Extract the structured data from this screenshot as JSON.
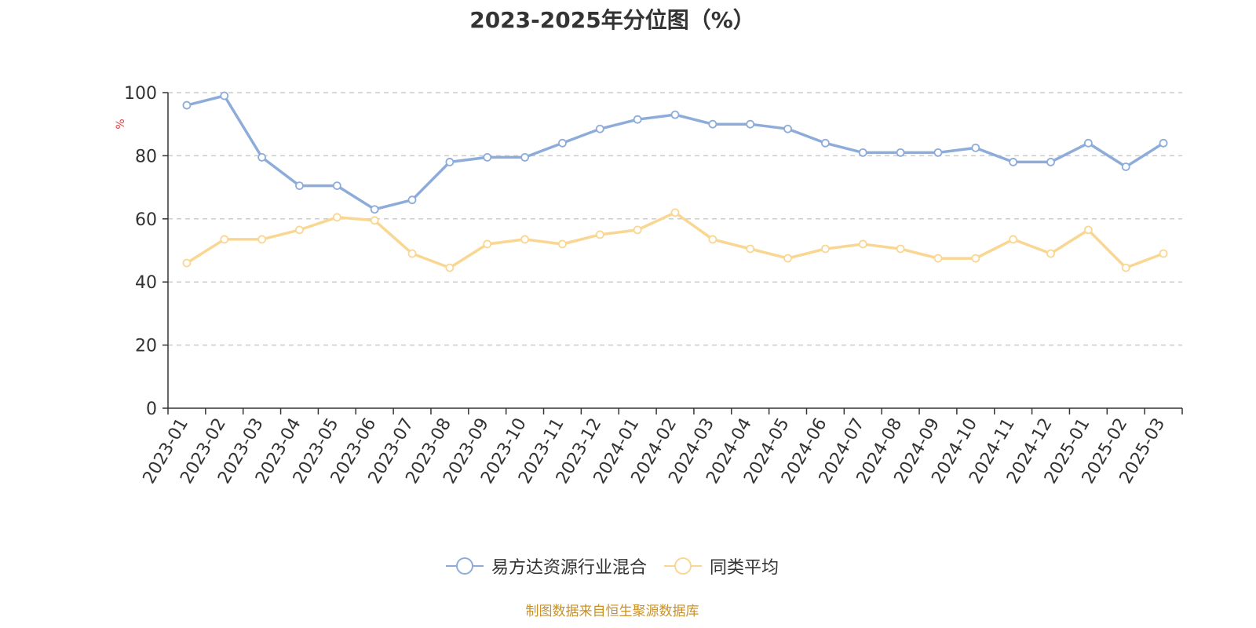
{
  "colors": {
    "series1": "#8eacd9",
    "series2": "#f9d793",
    "ylabel": "#e03c3c",
    "source": "#c8912a",
    "grid": "#cccccc",
    "axis": "#333333"
  },
  "chart_data": {
    "type": "line",
    "title": "2023-2025年分位图（%）",
    "ylabel": "%",
    "xlabel": "",
    "ylim": [
      0,
      100
    ],
    "yticks": [
      0,
      20,
      40,
      60,
      80,
      100
    ],
    "grid": "horizontal dashed",
    "legend_position": "bottom",
    "categories": [
      "2023-01",
      "2023-02",
      "2023-03",
      "2023-04",
      "2023-05",
      "2023-06",
      "2023-07",
      "2023-08",
      "2023-09",
      "2023-10",
      "2023-11",
      "2023-12",
      "2024-01",
      "2024-02",
      "2024-03",
      "2024-04",
      "2024-05",
      "2024-06",
      "2024-07",
      "2024-08",
      "2024-09",
      "2024-10",
      "2024-11",
      "2024-12",
      "2025-01",
      "2025-02",
      "2025-03"
    ],
    "series": [
      {
        "name": "易方达资源行业混合",
        "values": [
          96,
          99,
          79.5,
          70.5,
          70.5,
          63,
          66,
          78,
          79.5,
          79.5,
          84,
          88.5,
          91.5,
          93,
          90,
          90,
          88.5,
          84,
          81,
          81,
          81,
          82.5,
          78,
          78,
          84,
          76.5,
          84
        ]
      },
      {
        "name": "同类平均",
        "values": [
          46,
          53.5,
          53.5,
          56.5,
          60.5,
          59.5,
          49,
          44.5,
          52,
          53.5,
          52,
          55,
          56.5,
          62,
          53.5,
          50.5,
          47.5,
          50.5,
          52,
          50.5,
          47.5,
          47.5,
          53.5,
          49,
          56.5,
          44.5,
          49
        ]
      }
    ]
  },
  "source_note": "制图数据来自恒生聚源数据库"
}
